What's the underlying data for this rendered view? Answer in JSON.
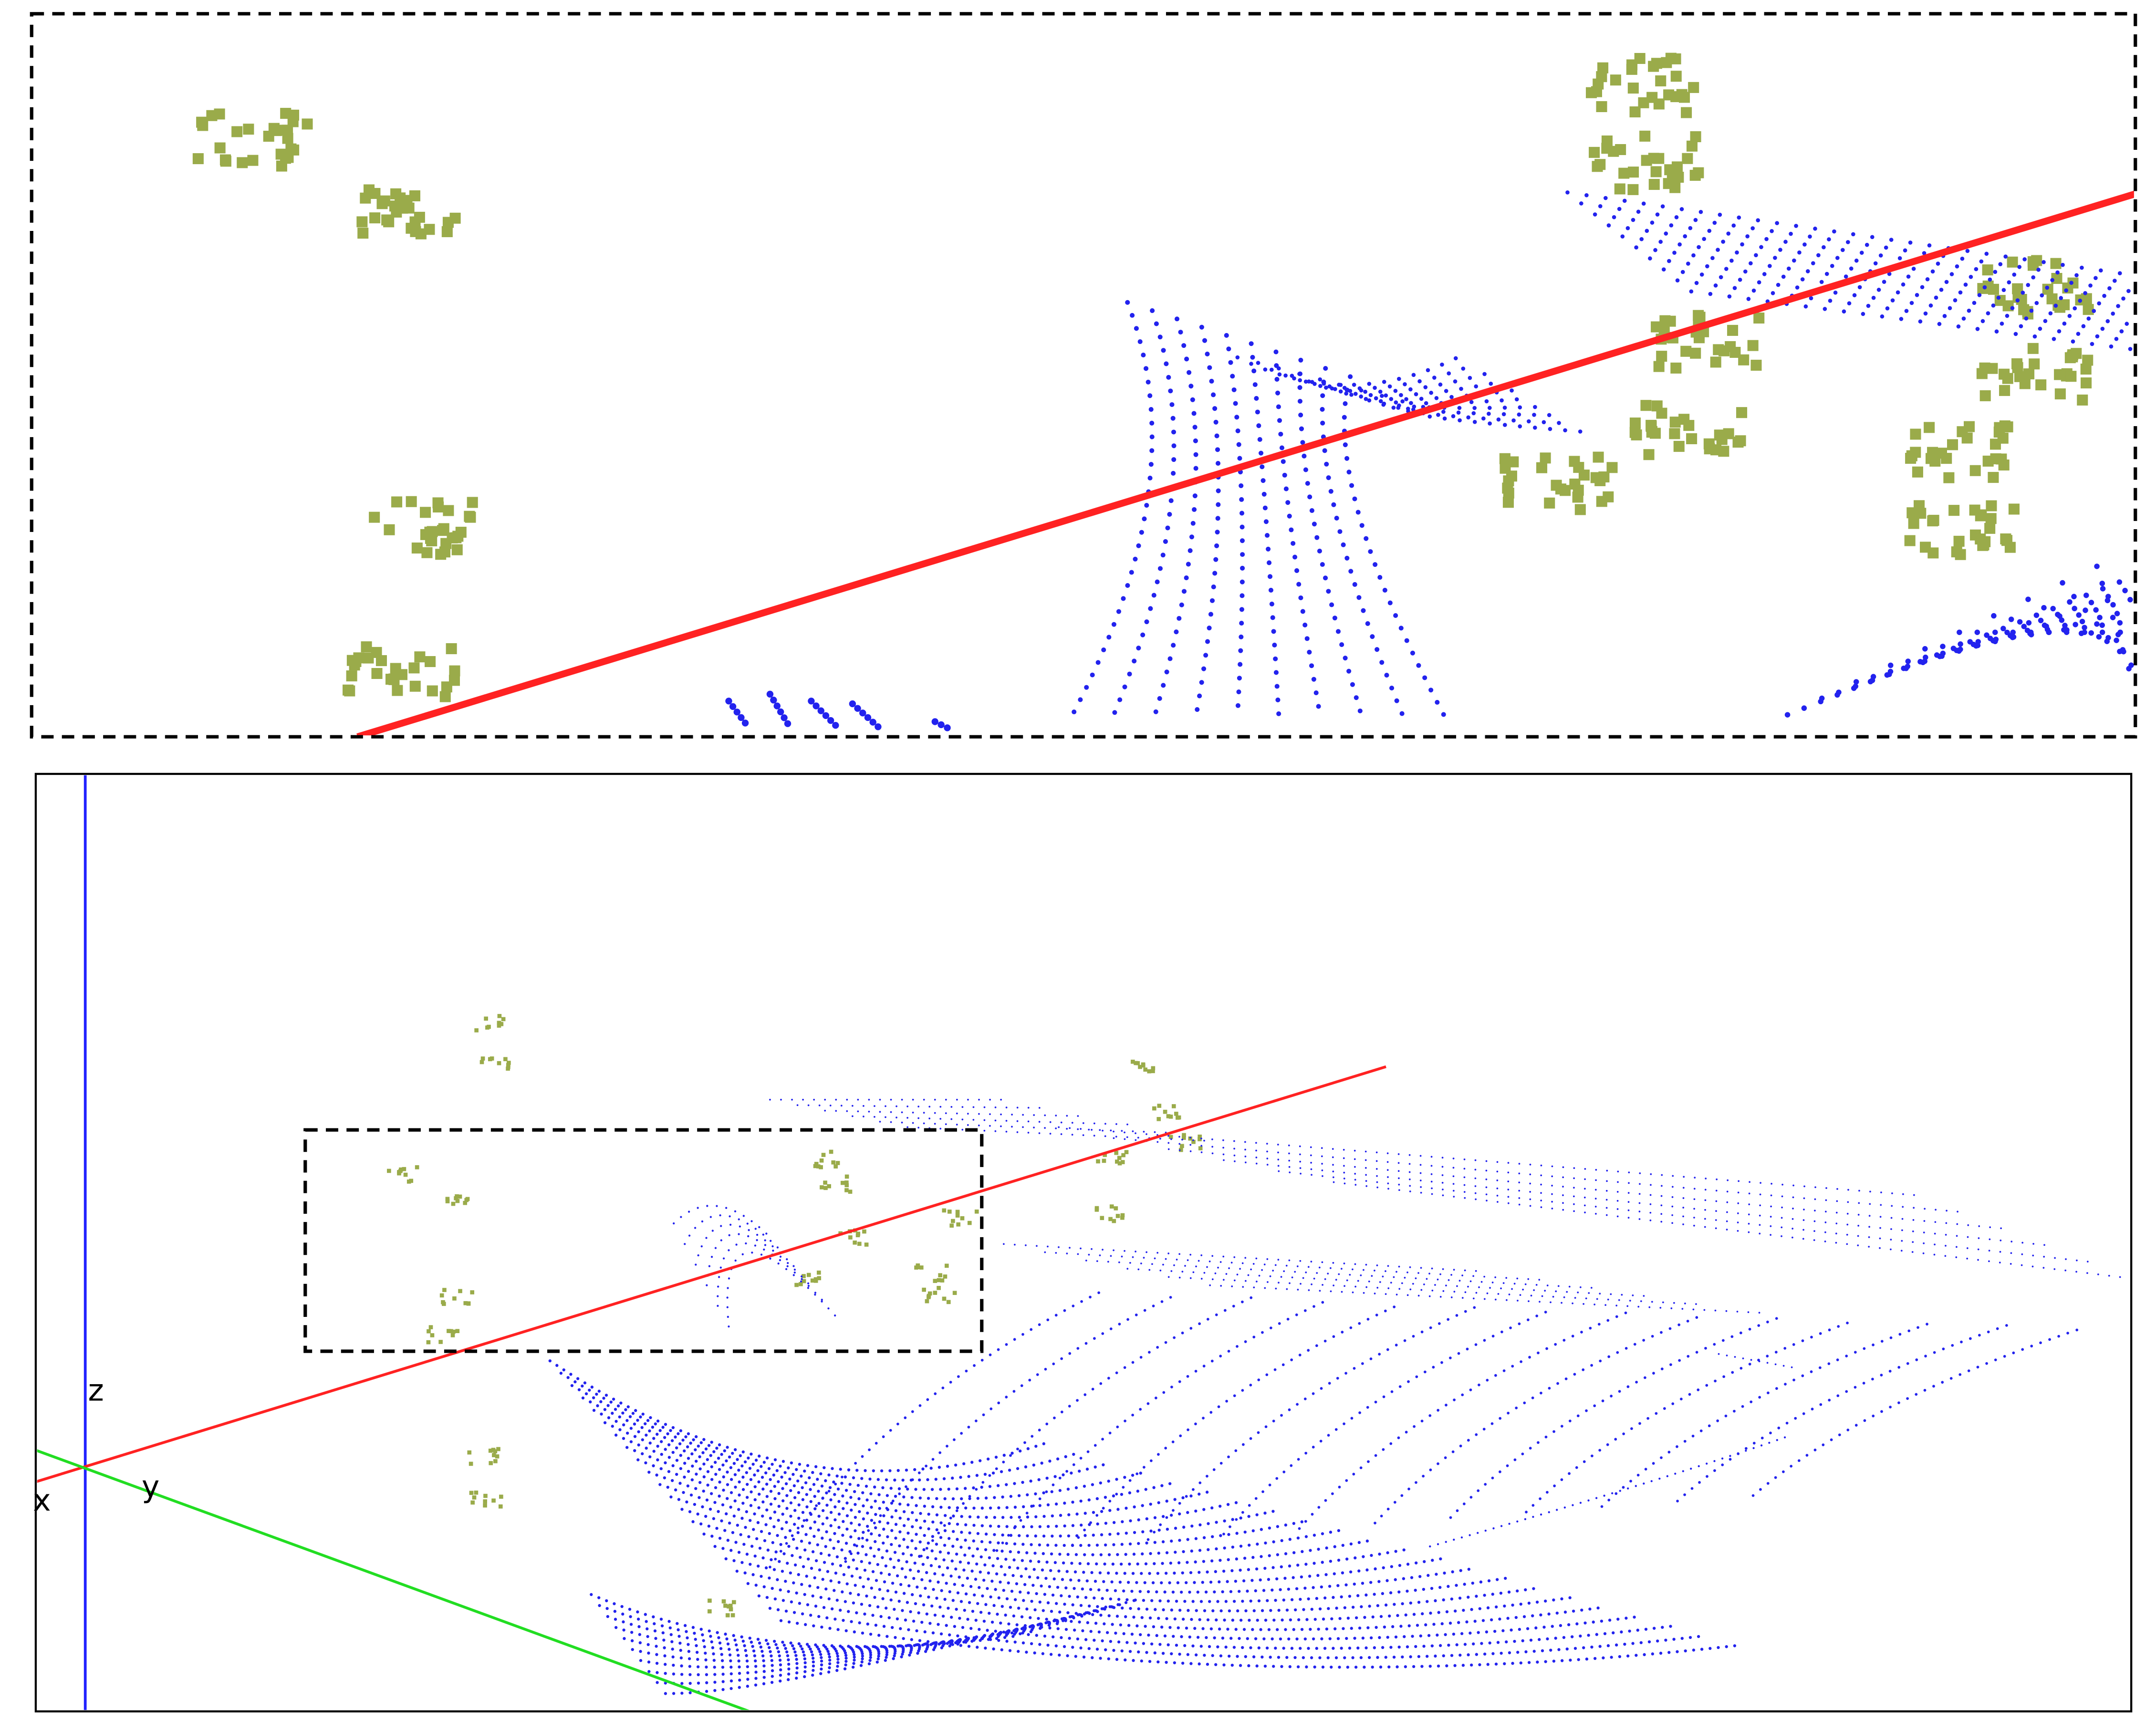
{
  "axes": {
    "z": "z",
    "x": "x",
    "y": "y"
  }
}
